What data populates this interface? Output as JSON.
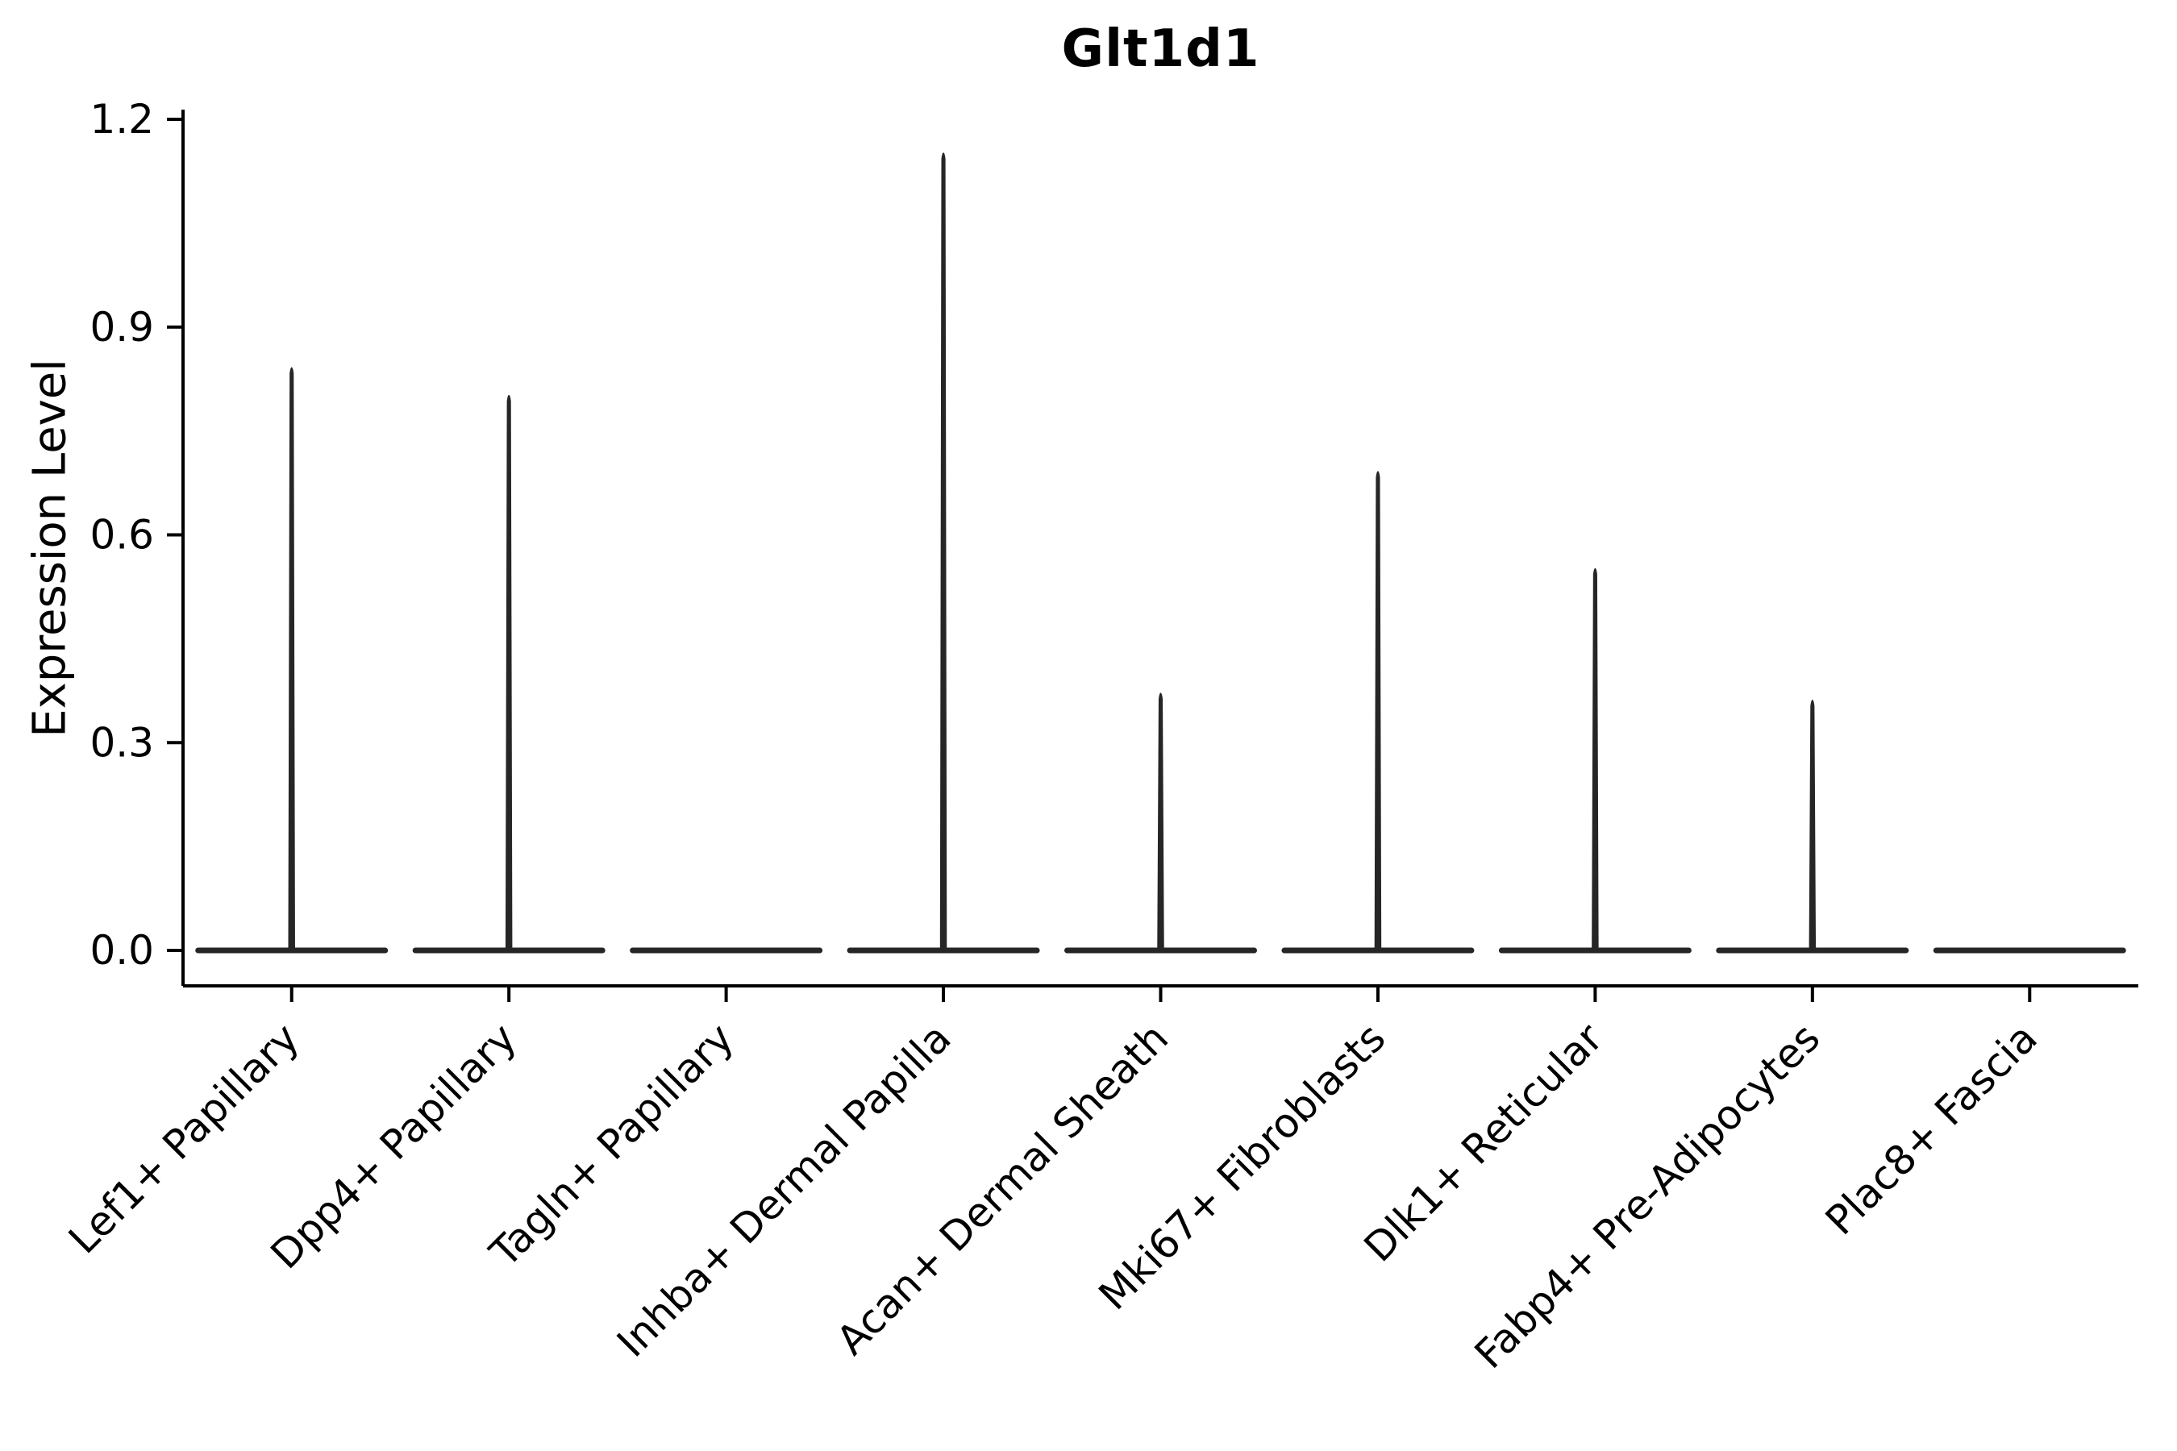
{
  "chart_data": {
    "type": "violin",
    "title": "Glt1d1",
    "xlabel": "",
    "ylabel": "Expression Level",
    "categories": [
      "Lef1+ Papillary",
      "Dpp4+ Papillary",
      "Tagln+ Papillary",
      "Inhba+ Dermal Papilla",
      "Acan+ Dermal Sheath",
      "Mki67+ Fibroblasts",
      "Dlk1+ Reticular",
      "Fabp4+ Pre-Adipocytes",
      "Plac8+ Fascia"
    ],
    "series": [
      {
        "name": "max_expression_level",
        "values": [
          0.84,
          0.8,
          0.0,
          1.15,
          0.37,
          0.69,
          0.55,
          0.36,
          0.0
        ]
      }
    ],
    "baseline_value": 0.0,
    "y_ticks": [
      0.0,
      0.3,
      0.6,
      0.9,
      1.2
    ],
    "y_tick_labels": [
      "0.0",
      "0.3",
      "0.6",
      "0.9",
      "1.2"
    ],
    "ylim": [
      -0.05,
      1.21
    ],
    "x_tick_rotation_deg": 45,
    "grid": false,
    "legend": "none",
    "violin_color": "#262626",
    "axis_color": "#000000",
    "background_color": "#ffffff"
  }
}
